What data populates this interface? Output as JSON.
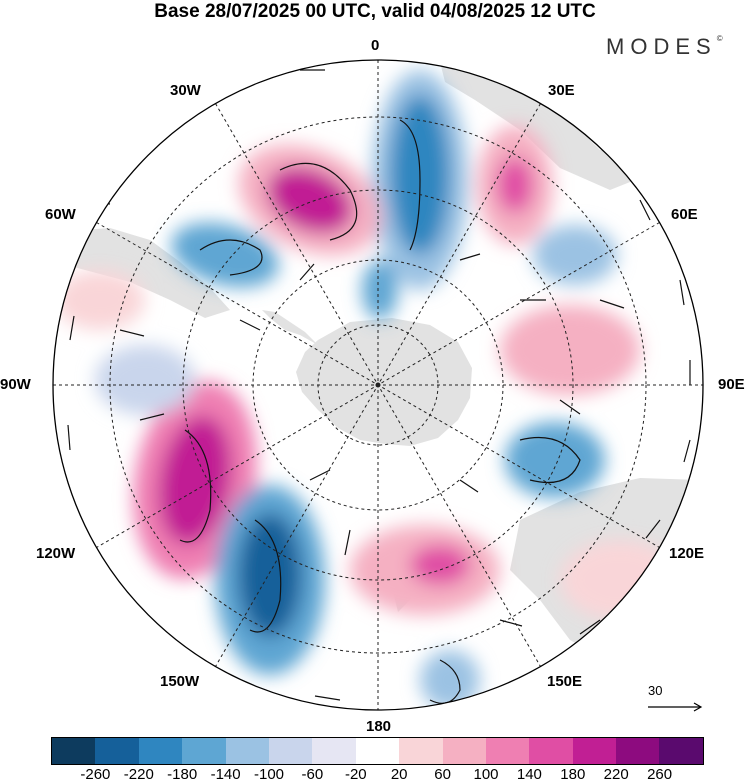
{
  "title": "Base 28/07/2025 00 UTC, valid 04/08/2025 12 UTC",
  "brand": "MODES",
  "brand_mark": "©",
  "longitude_labels": {
    "top": "0",
    "bottom": "180",
    "e30": "30E",
    "e60": "60E",
    "e90": "90E",
    "e120": "120E",
    "e150": "150E",
    "w30": "30W",
    "w60": "60W",
    "w90": "90W",
    "w120": "120W",
    "w150": "150W"
  },
  "vector_scale_label": "30",
  "colorbar": {
    "colors": [
      "#0d3b5e",
      "#15609a",
      "#2f86c0",
      "#5ea6d3",
      "#9bc2e3",
      "#c9d5ec",
      "#e6e6f3",
      "#ffffff",
      "#f9d5d8",
      "#f5b0c2",
      "#ef7fb2",
      "#e04ea4",
      "#c11f94",
      "#8d0b7f",
      "#5a0a6e"
    ],
    "tick_labels": [
      "-260",
      "-220",
      "-180",
      "-140",
      "-100",
      "-60",
      "-20",
      "20",
      "60",
      "100",
      "140",
      "180",
      "220",
      "260"
    ]
  },
  "map_colors": {
    "land": "#e3e3e3",
    "ocean": "#ffffff",
    "grid": "#222222"
  }
}
